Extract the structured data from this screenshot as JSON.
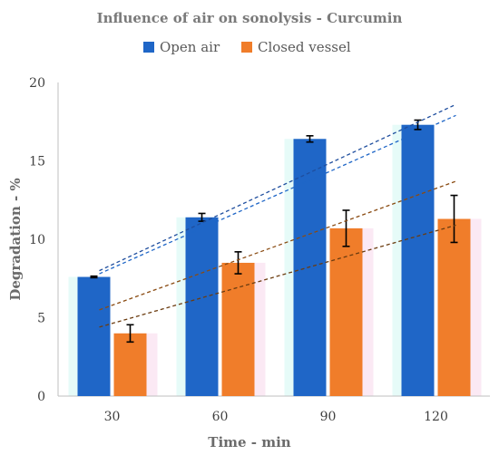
{
  "chart_data": {
    "type": "bar",
    "title": "Influence of air on sonolysis - Curcumin",
    "xlabel": "Time - min",
    "ylabel": "Degradation - %",
    "categories": [
      "30",
      "60",
      "90",
      "120"
    ],
    "ylim": [
      0,
      20
    ],
    "yticks": [
      0,
      5,
      10,
      15,
      20
    ],
    "grid": false,
    "legend_position": "top",
    "series": [
      {
        "name": "Open air",
        "color": "#1f66c7",
        "values": [
          7.6,
          11.4,
          16.4,
          17.3
        ],
        "errors": [
          0.05,
          0.25,
          0.2,
          0.3
        ],
        "trendline": {
          "from": [
            8.0,
            18.6
          ],
          "to": [
            7.8,
            17.9
          ]
        }
      },
      {
        "name": "Closed vessel",
        "color": "#f07d2a",
        "values": [
          4.0,
          8.5,
          10.7,
          11.3
        ],
        "errors": [
          0.55,
          0.7,
          1.15,
          1.5
        ],
        "trendline": {
          "from": [
            5.5,
            13.7
          ],
          "to": [
            4.4,
            10.9
          ]
        }
      }
    ]
  }
}
